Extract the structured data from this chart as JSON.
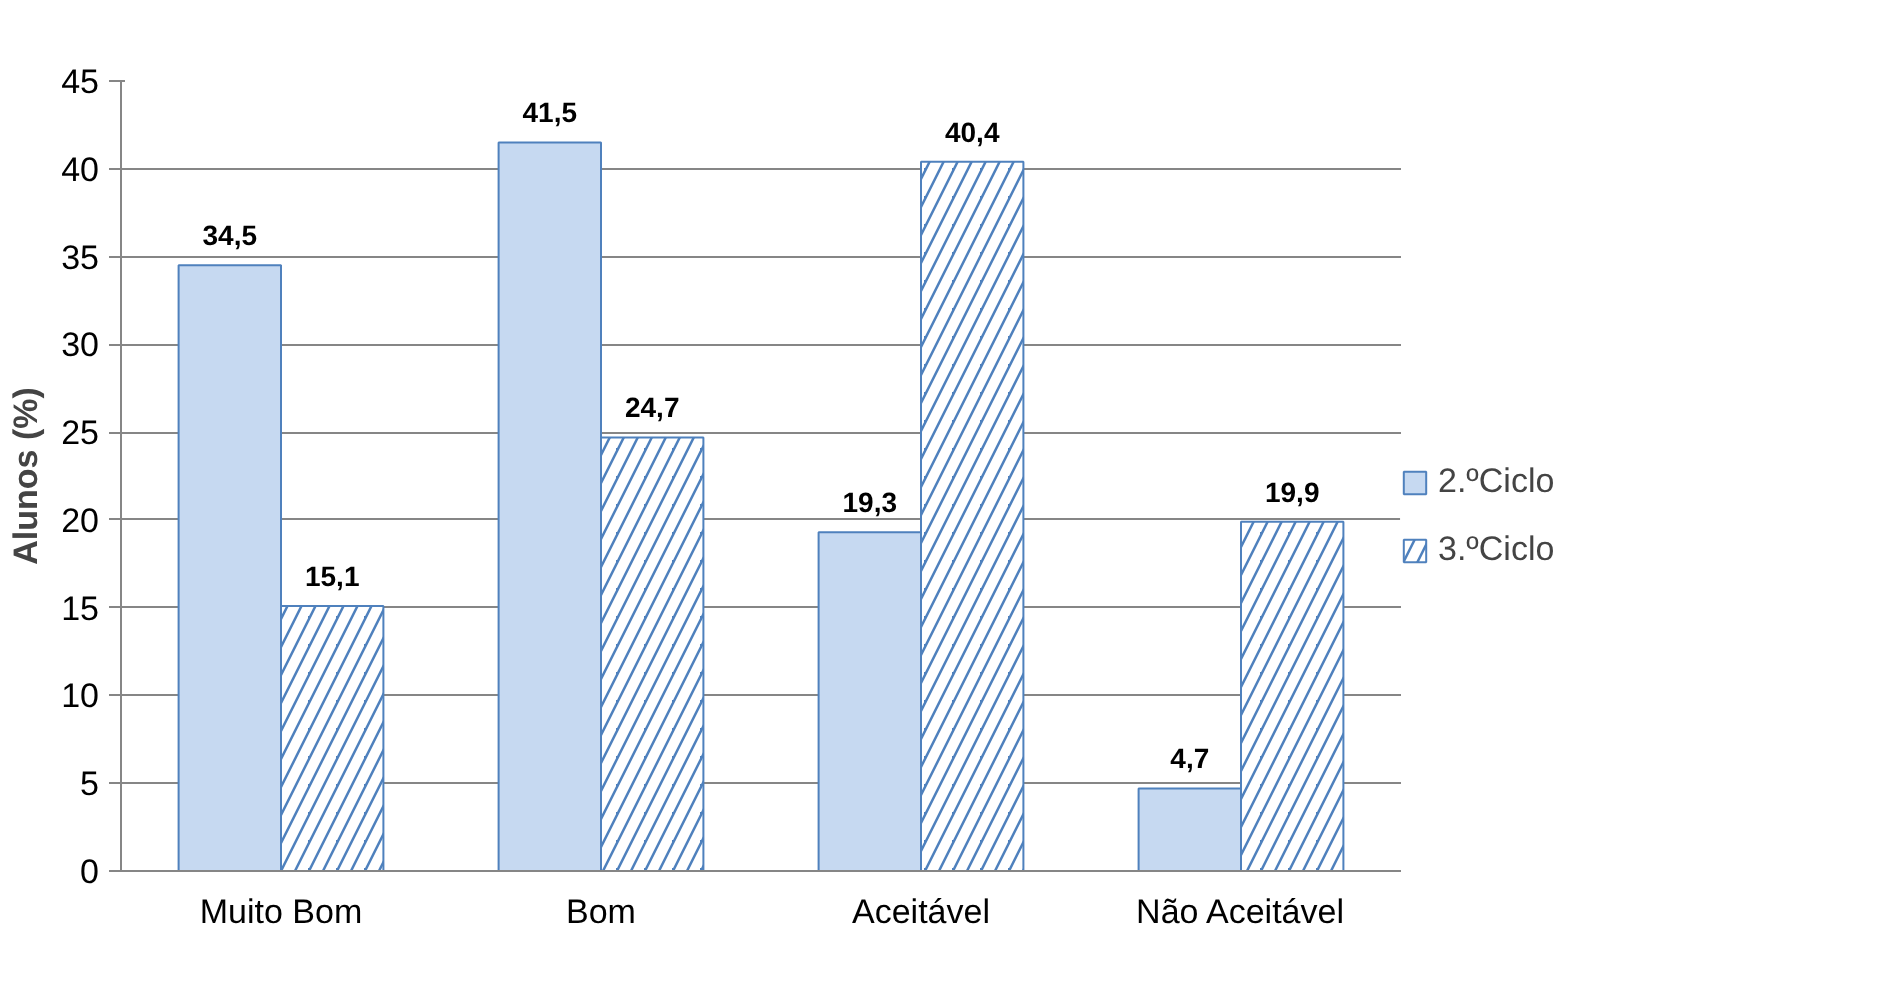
{
  "chart_data": {
    "type": "bar",
    "ylabel": "Alunos (%)",
    "categories": [
      "Muito Bom",
      "Bom",
      "Aceitável",
      "Não Aceitável"
    ],
    "series": [
      {
        "name": "2.ºCiclo",
        "color": "#c6d9f1",
        "values": [
          34.5,
          41.5,
          19.3,
          4.7
        ],
        "value_labels": [
          "34,5",
          "41,5",
          "19,3",
          "4,7"
        ]
      },
      {
        "name": "3.ºCiclo",
        "color": "#4f81bd",
        "values": [
          15.1,
          24.7,
          40.4,
          19.9
        ],
        "value_labels": [
          "15,1",
          "24,7",
          "40,4",
          "19,9"
        ]
      }
    ],
    "ylim": [
      0,
      45
    ],
    "yticks": [
      0,
      5,
      10,
      15,
      20,
      25,
      30,
      35,
      40,
      45
    ],
    "grid": "y",
    "legend": "right"
  }
}
